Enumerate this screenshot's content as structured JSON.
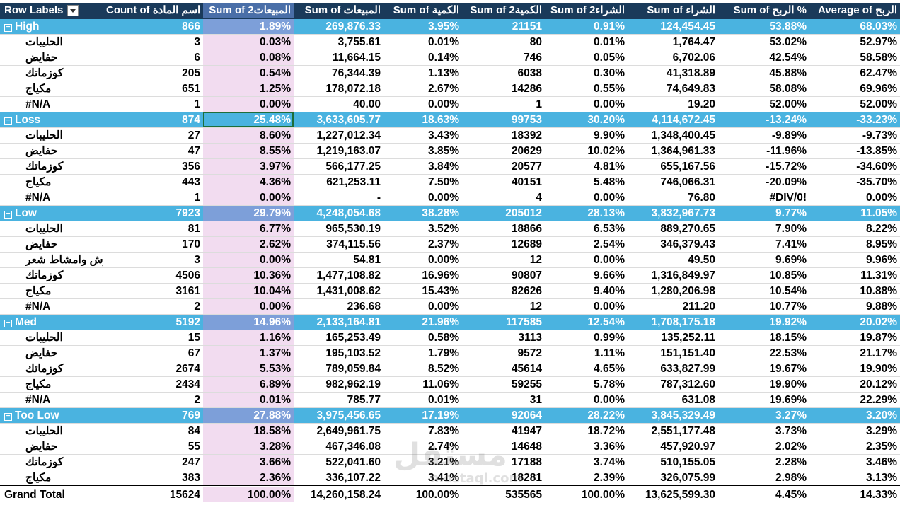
{
  "header": {
    "row_labels": "Row Labels",
    "cols": [
      "Count of اسم المادة",
      "Sum of 2المبيعات",
      "Sum of المبيعات",
      "Sum of الكمية",
      "Sum of 2الكمية",
      "Sum of 2الشراء",
      "Sum of الشراء",
      "Sum of الربح %",
      "Average of الربح"
    ]
  },
  "groups": [
    {
      "label": "High",
      "values": [
        "866",
        "1.89%",
        "269,876.33",
        "3.95%",
        "21151",
        "0.91%",
        "124,454.45",
        "53.88%",
        "68.03%"
      ],
      "items": [
        {
          "label": "الحليبات",
          "values": [
            "3",
            "0.03%",
            "3,755.61",
            "0.01%",
            "80",
            "0.01%",
            "1,764.47",
            "53.02%",
            "52.97%"
          ]
        },
        {
          "label": "حفايض",
          "values": [
            "6",
            "0.08%",
            "11,664.15",
            "0.14%",
            "746",
            "0.05%",
            "6,702.06",
            "42.54%",
            "58.58%"
          ]
        },
        {
          "label": "كوزماتك",
          "values": [
            "205",
            "0.54%",
            "76,344.39",
            "1.13%",
            "6038",
            "0.30%",
            "41,318.89",
            "45.88%",
            "62.47%"
          ]
        },
        {
          "label": "مكياج",
          "values": [
            "651",
            "1.25%",
            "178,072.18",
            "2.67%",
            "14286",
            "0.55%",
            "74,649.83",
            "58.08%",
            "69.96%"
          ]
        },
        {
          "label": "#N/A",
          "values": [
            "1",
            "0.00%",
            "40.00",
            "0.00%",
            "1",
            "0.00%",
            "19.20",
            "52.00%",
            "52.00%"
          ]
        }
      ]
    },
    {
      "label": "Loss",
      "values": [
        "874",
        "25.48%",
        "3,633,605.77",
        "18.63%",
        "99753",
        "30.20%",
        "4,114,672.45",
        "-13.24%",
        "-33.23%"
      ],
      "items": [
        {
          "label": "الحليبات",
          "values": [
            "27",
            "8.60%",
            "1,227,012.34",
            "3.43%",
            "18392",
            "9.90%",
            "1,348,400.45",
            "-9.89%",
            "-9.73%"
          ]
        },
        {
          "label": "حفايض",
          "values": [
            "47",
            "8.55%",
            "1,219,163.07",
            "3.85%",
            "20629",
            "10.02%",
            "1,364,961.33",
            "-11.96%",
            "-13.85%"
          ]
        },
        {
          "label": "كوزماتك",
          "values": [
            "356",
            "3.97%",
            "566,177.25",
            "3.84%",
            "20577",
            "4.81%",
            "655,167.56",
            "-15.72%",
            "-34.60%"
          ]
        },
        {
          "label": "مكياج",
          "values": [
            "443",
            "4.36%",
            "621,253.11",
            "7.50%",
            "40151",
            "5.48%",
            "746,066.31",
            "-20.09%",
            "-35.70%"
          ]
        },
        {
          "label": "#N/A",
          "values": [
            "1",
            "0.00%",
            "-",
            "0.00%",
            "4",
            "0.00%",
            "76.80",
            "#DIV/0!",
            "0.00%"
          ]
        }
      ]
    },
    {
      "label": "Low",
      "values": [
        "7923",
        "29.79%",
        "4,248,054.68",
        "38.28%",
        "205012",
        "28.13%",
        "3,832,967.73",
        "9.77%",
        "11.05%"
      ],
      "items": [
        {
          "label": "الحليبات",
          "values": [
            "81",
            "6.77%",
            "965,530.19",
            "3.52%",
            "18866",
            "6.53%",
            "889,270.65",
            "7.90%",
            "8.22%"
          ]
        },
        {
          "label": "حفايض",
          "values": [
            "170",
            "2.62%",
            "374,115.56",
            "2.37%",
            "12689",
            "2.54%",
            "346,379.43",
            "7.41%",
            "8.95%"
          ]
        },
        {
          "label": "فرش وامشاط شعر",
          "values": [
            "3",
            "0.00%",
            "54.81",
            "0.00%",
            "12",
            "0.00%",
            "49.50",
            "9.69%",
            "9.96%"
          ]
        },
        {
          "label": "كوزماتك",
          "values": [
            "4506",
            "10.36%",
            "1,477,108.82",
            "16.96%",
            "90807",
            "9.66%",
            "1,316,849.97",
            "10.85%",
            "11.31%"
          ]
        },
        {
          "label": "مكياج",
          "values": [
            "3161",
            "10.04%",
            "1,431,008.62",
            "15.43%",
            "82626",
            "9.40%",
            "1,280,206.98",
            "10.54%",
            "10.88%"
          ]
        },
        {
          "label": "#N/A",
          "values": [
            "2",
            "0.00%",
            "236.68",
            "0.00%",
            "12",
            "0.00%",
            "211.20",
            "10.77%",
            "9.88%"
          ]
        }
      ]
    },
    {
      "label": "Med",
      "values": [
        "5192",
        "14.96%",
        "2,133,164.81",
        "21.96%",
        "117585",
        "12.54%",
        "1,708,175.18",
        "19.92%",
        "20.02%"
      ],
      "items": [
        {
          "label": "الحليبات",
          "values": [
            "15",
            "1.16%",
            "165,253.49",
            "0.58%",
            "3113",
            "0.99%",
            "135,252.11",
            "18.15%",
            "19.87%"
          ]
        },
        {
          "label": "حفايض",
          "values": [
            "67",
            "1.37%",
            "195,103.52",
            "1.79%",
            "9572",
            "1.11%",
            "151,151.40",
            "22.53%",
            "21.17%"
          ]
        },
        {
          "label": "كوزماتك",
          "values": [
            "2674",
            "5.53%",
            "789,059.84",
            "8.52%",
            "45614",
            "4.65%",
            "633,827.99",
            "19.67%",
            "19.90%"
          ]
        },
        {
          "label": "مكياج",
          "values": [
            "2434",
            "6.89%",
            "982,962.19",
            "11.06%",
            "59255",
            "5.78%",
            "787,312.60",
            "19.90%",
            "20.12%"
          ]
        },
        {
          "label": "#N/A",
          "values": [
            "2",
            "0.01%",
            "785.77",
            "0.01%",
            "31",
            "0.00%",
            "631.08",
            "19.69%",
            "22.29%"
          ]
        }
      ]
    },
    {
      "label": "Too Low",
      "values": [
        "769",
        "27.88%",
        "3,975,456.65",
        "17.19%",
        "92064",
        "28.22%",
        "3,845,329.49",
        "3.27%",
        "3.20%"
      ],
      "items": [
        {
          "label": "الحليبات",
          "values": [
            "84",
            "18.58%",
            "2,649,961.75",
            "7.83%",
            "41947",
            "18.72%",
            "2,551,177.48",
            "3.73%",
            "3.29%"
          ]
        },
        {
          "label": "حفايض",
          "values": [
            "55",
            "3.28%",
            "467,346.08",
            "2.74%",
            "14648",
            "3.36%",
            "457,920.97",
            "2.02%",
            "2.35%"
          ]
        },
        {
          "label": "كوزماتك",
          "values": [
            "247",
            "3.66%",
            "522,041.60",
            "3.21%",
            "17188",
            "3.74%",
            "510,155.05",
            "2.28%",
            "3.46%"
          ]
        },
        {
          "label": "مكياج",
          "values": [
            "383",
            "2.36%",
            "336,107.22",
            "3.41%",
            "18281",
            "2.39%",
            "326,075.99",
            "2.98%",
            "3.13%"
          ]
        }
      ]
    }
  ],
  "grand_total": {
    "label": "Grand Total",
    "values": [
      "15624",
      "100.00%",
      "14,260,158.24",
      "100.00%",
      "535565",
      "100.00%",
      "13,625,599.30",
      "4.45%",
      "14.33%"
    ]
  },
  "selected": {
    "group": "Loss",
    "col": 1
  },
  "watermark": {
    "text": "مستقل",
    "sub": "mostaql.com"
  }
}
